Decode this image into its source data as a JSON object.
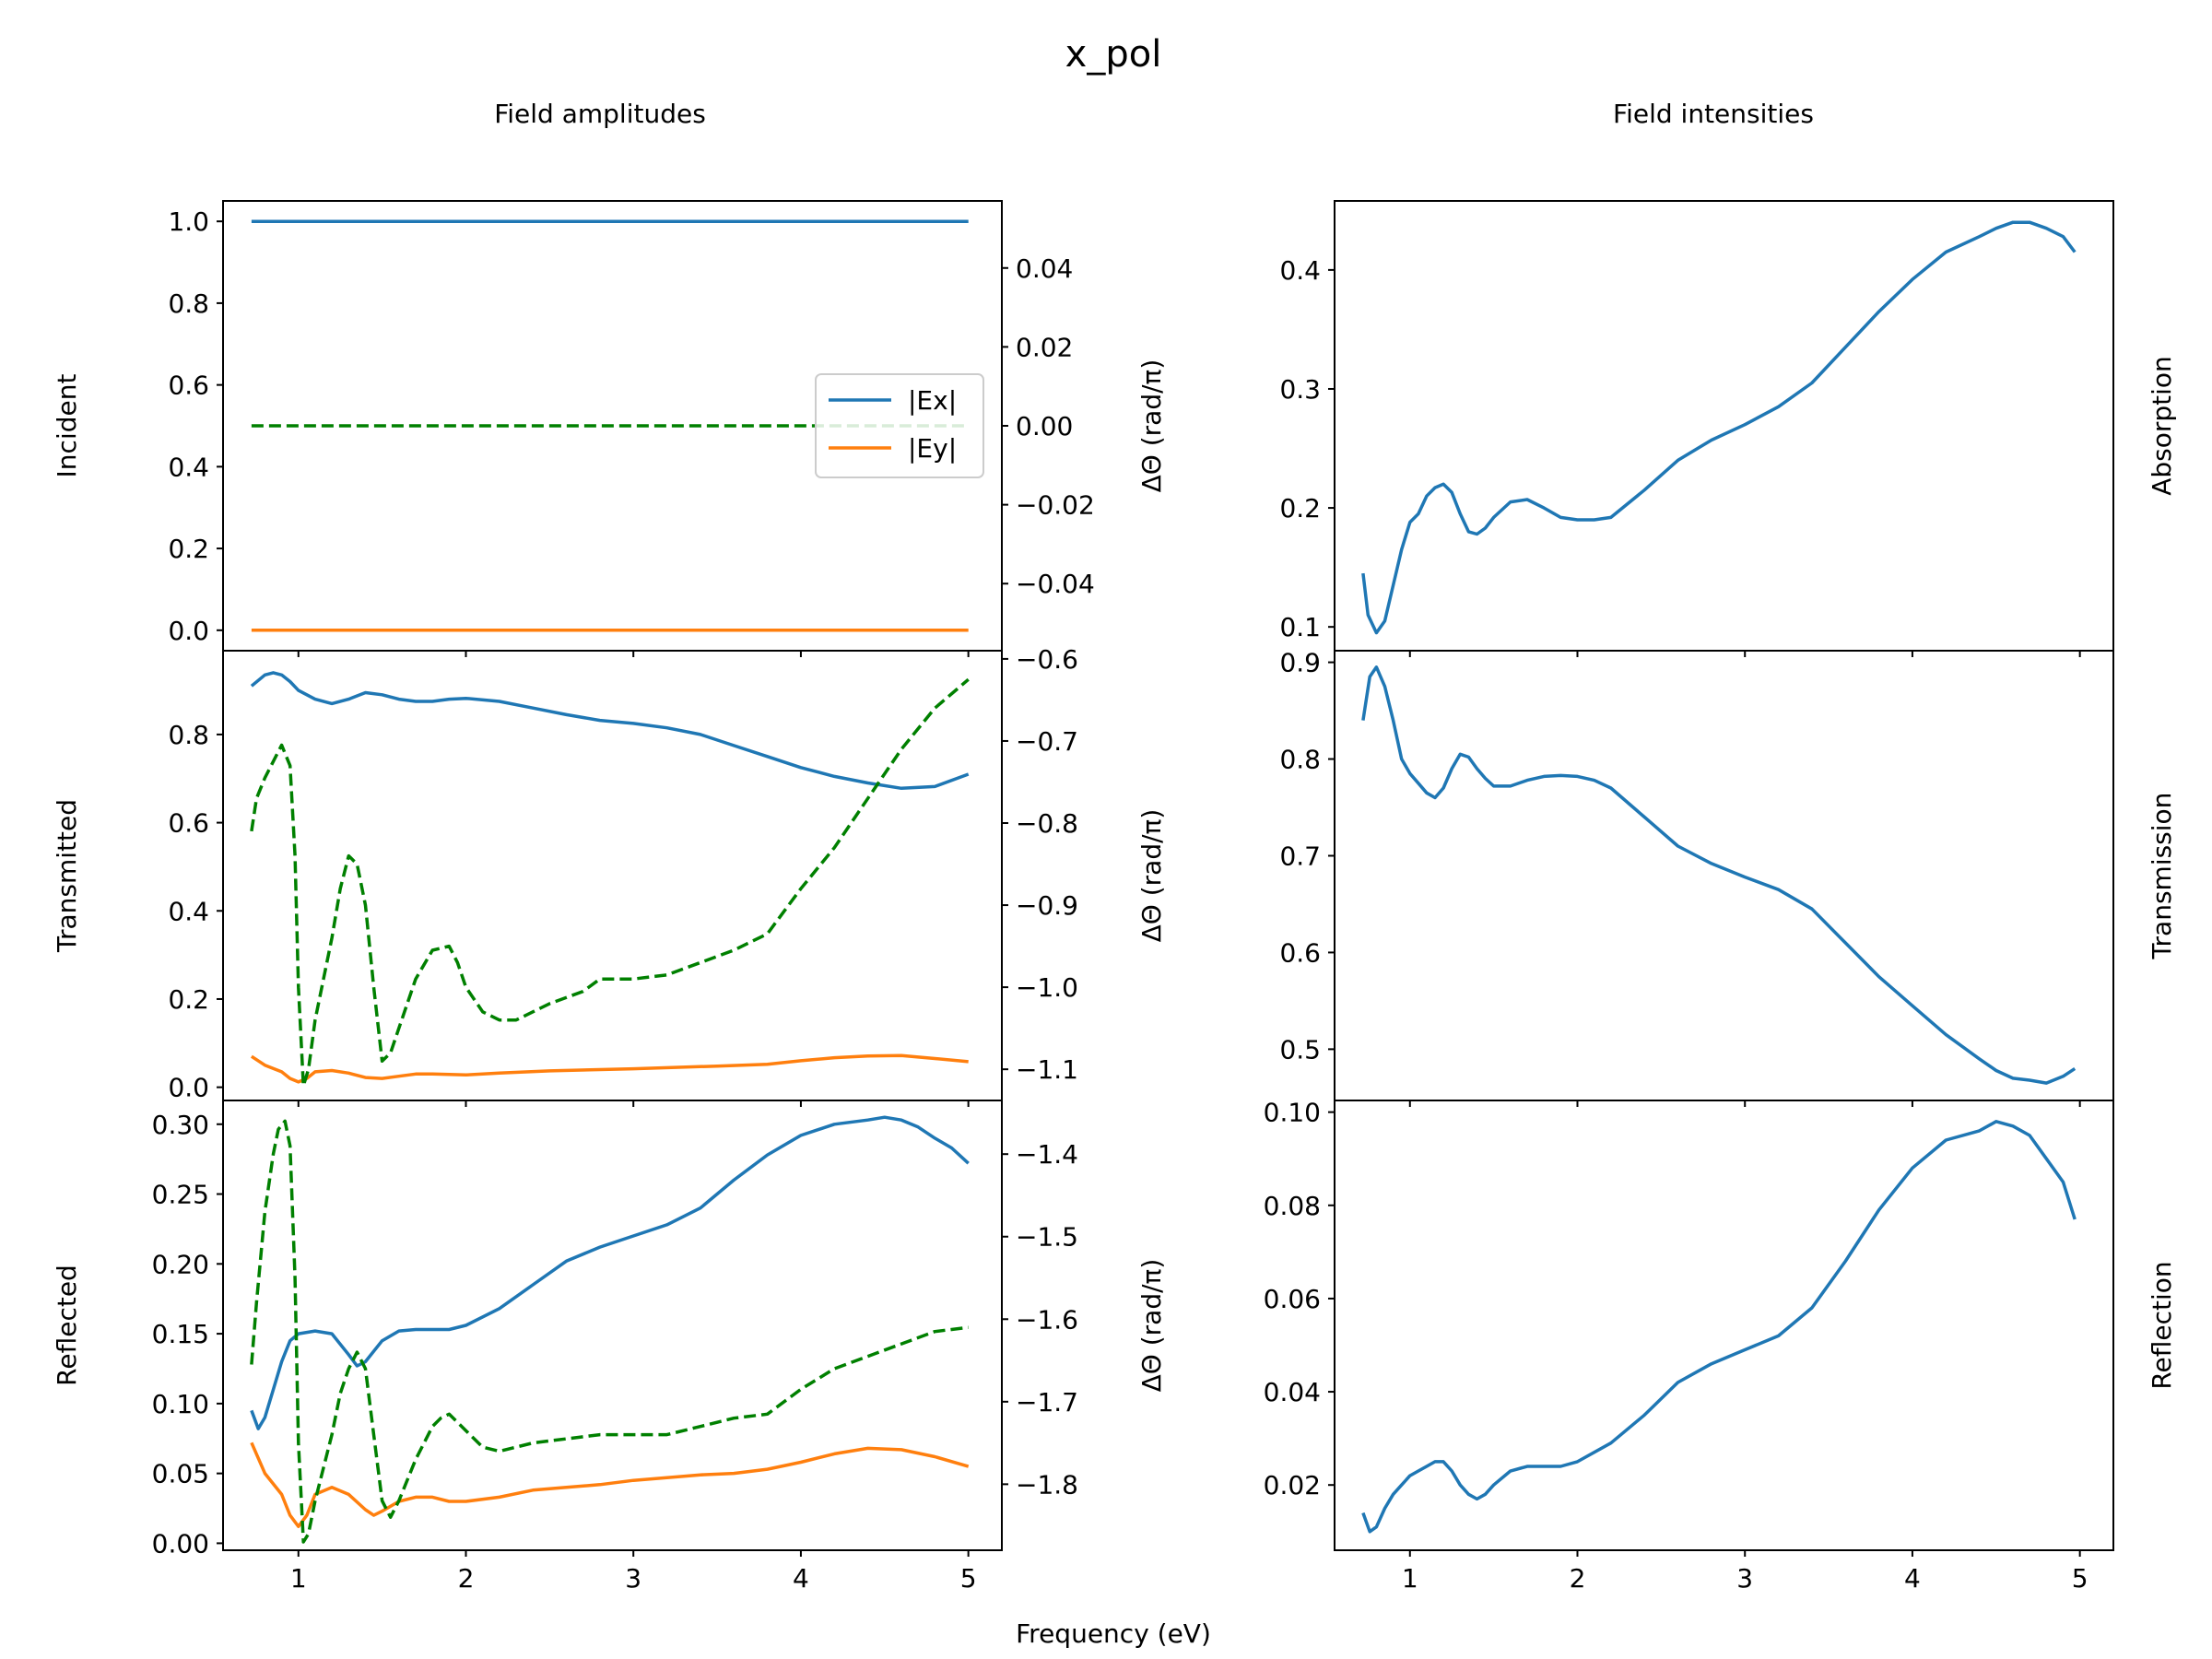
{
  "figure": {
    "title": "x_pol",
    "columns": [
      "Field amplitudes",
      "Field intensities"
    ],
    "xlabel": "Frequency (eV)",
    "twin_ylabel": "ΔΘ (rad/π)"
  },
  "colors": {
    "ex": "#1f77b4",
    "ey": "#ff7f0e",
    "phase": "#008000"
  },
  "legend": {
    "position": "center-right",
    "entries": [
      "|Ex|",
      "|Ey|"
    ]
  },
  "chart_data": [
    {
      "type": "line",
      "panel": "Incident",
      "ylabel": "Incident",
      "xlim": [
        0.55,
        5.2
      ],
      "ylim": [
        -0.05,
        1.05
      ],
      "xticks": [
        1,
        2,
        3,
        4,
        5
      ],
      "yticks": [
        0.0,
        0.2,
        0.4,
        0.6,
        0.8,
        1.0
      ],
      "ytick_labels": [
        "0.0",
        "0.2",
        "0.4",
        "0.6",
        "0.8",
        "1.0"
      ],
      "twin": {
        "ylabel": "ΔΘ (rad/π)",
        "ylim": [
          -0.057,
          0.057
        ],
        "yticks": [
          -0.04,
          -0.02,
          0.0,
          0.02,
          0.04
        ],
        "ytick_labels": [
          "−0.04",
          "−0.02",
          "0.00",
          "0.02",
          "0.04"
        ]
      },
      "series": [
        {
          "name": "|Ex|",
          "axis": "left",
          "style": "solid",
          "color": "#1f77b4",
          "x": [
            0.72,
            5.0
          ],
          "y": [
            1.0,
            1.0
          ]
        },
        {
          "name": "|Ey|",
          "axis": "left",
          "style": "solid",
          "color": "#ff7f0e",
          "x": [
            0.72,
            5.0
          ],
          "y": [
            0.0,
            0.0
          ]
        },
        {
          "axis": "right",
          "style": "dashed",
          "color": "#008000",
          "x": [
            0.72,
            5.0
          ],
          "y": [
            0.0,
            0.0
          ]
        }
      ]
    },
    {
      "type": "line",
      "panel": "Transmitted",
      "ylabel": "Transmitted",
      "xlim": [
        0.55,
        5.2
      ],
      "ylim": [
        -0.03,
        0.99
      ],
      "xticks": [
        1,
        2,
        3,
        4,
        5
      ],
      "yticks": [
        0.0,
        0.2,
        0.4,
        0.6,
        0.8
      ],
      "ytick_labels": [
        "0.0",
        "0.2",
        "0.4",
        "0.6",
        "0.8"
      ],
      "twin": {
        "ylabel": "ΔΘ (rad/π)",
        "ylim": [
          -1.138,
          -0.59
        ],
        "yticks": [
          -1.1,
          -1.0,
          -0.9,
          -0.8,
          -0.7,
          -0.6
        ],
        "ytick_labels": [
          "−1.1",
          "−1.0",
          "−0.9",
          "−0.8",
          "−0.7",
          "−0.6"
        ]
      },
      "series": [
        {
          "name": "|Ex|",
          "axis": "left",
          "style": "solid",
          "color": "#1f77b4",
          "x": [
            0.72,
            0.8,
            0.85,
            0.9,
            0.95,
            1.0,
            1.1,
            1.2,
            1.3,
            1.4,
            1.5,
            1.6,
            1.7,
            1.8,
            1.9,
            2.0,
            2.2,
            2.4,
            2.6,
            2.8,
            3.0,
            3.2,
            3.4,
            3.6,
            3.8,
            4.0,
            4.2,
            4.4,
            4.6,
            4.8,
            5.0
          ],
          "y": [
            0.91,
            0.935,
            0.94,
            0.935,
            0.92,
            0.9,
            0.88,
            0.87,
            0.88,
            0.895,
            0.89,
            0.88,
            0.875,
            0.875,
            0.88,
            0.882,
            0.875,
            0.86,
            0.845,
            0.832,
            0.825,
            0.815,
            0.8,
            0.775,
            0.75,
            0.725,
            0.705,
            0.69,
            0.678,
            0.682,
            0.71
          ]
        },
        {
          "name": "|Ey|",
          "axis": "left",
          "style": "solid",
          "color": "#ff7f0e",
          "x": [
            0.72,
            0.8,
            0.9,
            0.95,
            1.0,
            1.05,
            1.1,
            1.2,
            1.3,
            1.4,
            1.5,
            1.6,
            1.7,
            1.8,
            2.0,
            2.2,
            2.5,
            3.0,
            3.5,
            3.8,
            4.0,
            4.2,
            4.4,
            4.6,
            4.8,
            5.0
          ],
          "y": [
            0.07,
            0.05,
            0.035,
            0.02,
            0.012,
            0.02,
            0.035,
            0.038,
            0.032,
            0.022,
            0.02,
            0.025,
            0.03,
            0.03,
            0.028,
            0.032,
            0.037,
            0.042,
            0.048,
            0.052,
            0.06,
            0.067,
            0.071,
            0.072,
            0.065,
            0.058
          ]
        },
        {
          "axis": "right",
          "style": "dashed",
          "color": "#008000",
          "x": [
            0.72,
            0.75,
            0.8,
            0.85,
            0.9,
            0.95,
            0.98,
            1.0,
            1.03,
            1.06,
            1.1,
            1.15,
            1.2,
            1.25,
            1.3,
            1.35,
            1.4,
            1.45,
            1.5,
            1.55,
            1.6,
            1.7,
            1.8,
            1.9,
            1.95,
            2.0,
            2.1,
            2.2,
            2.3,
            2.5,
            2.7,
            2.8,
            3.0,
            3.2,
            3.4,
            3.6,
            3.8,
            4.0,
            4.2,
            4.4,
            4.6,
            4.8,
            5.0
          ],
          "y": [
            -0.81,
            -0.77,
            -0.745,
            -0.725,
            -0.705,
            -0.73,
            -0.84,
            -1.0,
            -1.12,
            -1.1,
            -1.04,
            -0.99,
            -0.94,
            -0.88,
            -0.84,
            -0.85,
            -0.9,
            -1.0,
            -1.09,
            -1.08,
            -1.05,
            -0.99,
            -0.955,
            -0.95,
            -0.97,
            -1.0,
            -1.03,
            -1.04,
            -1.04,
            -1.02,
            -1.005,
            -0.99,
            -0.99,
            -0.985,
            -0.97,
            -0.955,
            -0.935,
            -0.88,
            -0.83,
            -0.77,
            -0.71,
            -0.66,
            -0.625
          ]
        }
      ]
    },
    {
      "type": "line",
      "panel": "Reflected",
      "ylabel": "Reflected",
      "xlim": [
        0.55,
        5.2
      ],
      "ylim": [
        -0.005,
        0.317
      ],
      "xticks": [
        1,
        2,
        3,
        4,
        5
      ],
      "xtick_labels": [
        "1",
        "2",
        "3",
        "4",
        "5"
      ],
      "yticks": [
        0.0,
        0.05,
        0.1,
        0.15,
        0.2,
        0.25,
        0.3
      ],
      "ytick_labels": [
        "0.00",
        "0.05",
        "0.10",
        "0.15",
        "0.20",
        "0.25",
        "0.30"
      ],
      "twin": {
        "ylabel": "ΔΘ (rad/π)",
        "ylim": [
          -1.88,
          -1.335
        ],
        "yticks": [
          -1.8,
          -1.7,
          -1.6,
          -1.5,
          -1.4
        ],
        "ytick_labels": [
          "−1.8",
          "−1.7",
          "−1.6",
          "−1.5",
          "−1.4"
        ]
      },
      "series": [
        {
          "name": "|Ex|",
          "axis": "left",
          "style": "solid",
          "color": "#1f77b4",
          "x": [
            0.72,
            0.76,
            0.8,
            0.85,
            0.9,
            0.95,
            1.0,
            1.1,
            1.2,
            1.3,
            1.35,
            1.4,
            1.5,
            1.6,
            1.7,
            1.8,
            1.9,
            2.0,
            2.2,
            2.4,
            2.6,
            2.8,
            3.0,
            3.2,
            3.4,
            3.6,
            3.8,
            4.0,
            4.2,
            4.4,
            4.5,
            4.6,
            4.7,
            4.8,
            4.9,
            5.0
          ],
          "y": [
            0.095,
            0.082,
            0.09,
            0.11,
            0.13,
            0.145,
            0.15,
            0.152,
            0.15,
            0.135,
            0.127,
            0.13,
            0.145,
            0.152,
            0.153,
            0.153,
            0.153,
            0.156,
            0.168,
            0.185,
            0.202,
            0.212,
            0.22,
            0.228,
            0.24,
            0.26,
            0.278,
            0.292,
            0.3,
            0.303,
            0.305,
            0.303,
            0.298,
            0.29,
            0.283,
            0.272
          ]
        },
        {
          "name": "|Ey|",
          "axis": "left",
          "style": "solid",
          "color": "#ff7f0e",
          "x": [
            0.72,
            0.8,
            0.9,
            0.95,
            1.0,
            1.05,
            1.1,
            1.2,
            1.3,
            1.4,
            1.45,
            1.5,
            1.6,
            1.7,
            1.8,
            1.9,
            2.0,
            2.2,
            2.4,
            2.6,
            2.8,
            3.0,
            3.2,
            3.4,
            3.6,
            3.8,
            4.0,
            4.2,
            4.4,
            4.6,
            4.8,
            5.0
          ],
          "y": [
            0.072,
            0.05,
            0.035,
            0.02,
            0.012,
            0.02,
            0.035,
            0.04,
            0.035,
            0.024,
            0.02,
            0.023,
            0.03,
            0.033,
            0.033,
            0.03,
            0.03,
            0.033,
            0.038,
            0.04,
            0.042,
            0.045,
            0.047,
            0.049,
            0.05,
            0.053,
            0.058,
            0.064,
            0.068,
            0.067,
            0.062,
            0.055
          ]
        },
        {
          "axis": "right",
          "style": "dashed",
          "color": "#008000",
          "x": [
            0.72,
            0.75,
            0.8,
            0.85,
            0.88,
            0.92,
            0.95,
            0.98,
            1.0,
            1.03,
            1.06,
            1.1,
            1.15,
            1.2,
            1.25,
            1.3,
            1.35,
            1.4,
            1.45,
            1.5,
            1.55,
            1.6,
            1.7,
            1.8,
            1.85,
            1.9,
            2.0,
            2.1,
            2.2,
            2.4,
            2.6,
            2.8,
            3.0,
            3.2,
            3.4,
            3.6,
            3.8,
            4.0,
            4.2,
            4.4,
            4.6,
            4.8,
            5.0
          ],
          "y": [
            -1.655,
            -1.58,
            -1.47,
            -1.4,
            -1.37,
            -1.36,
            -1.39,
            -1.55,
            -1.75,
            -1.87,
            -1.86,
            -1.82,
            -1.78,
            -1.74,
            -1.69,
            -1.66,
            -1.64,
            -1.66,
            -1.74,
            -1.82,
            -1.84,
            -1.82,
            -1.77,
            -1.73,
            -1.72,
            -1.715,
            -1.735,
            -1.755,
            -1.76,
            -1.75,
            -1.745,
            -1.74,
            -1.74,
            -1.74,
            -1.73,
            -1.72,
            -1.715,
            -1.685,
            -1.66,
            -1.645,
            -1.63,
            -1.615,
            -1.61
          ]
        }
      ]
    },
    {
      "type": "line",
      "panel": "Absorption",
      "ylabel": "Absorption",
      "xlim": [
        0.55,
        5.2
      ],
      "ylim": [
        0.08,
        0.458
      ],
      "xticks": [
        1,
        2,
        3,
        4,
        5
      ],
      "yticks": [
        0.1,
        0.2,
        0.3,
        0.4
      ],
      "ytick_labels": [
        "0.1",
        "0.2",
        "0.3",
        "0.4"
      ],
      "series": [
        {
          "axis": "left",
          "style": "solid",
          "color": "#1f77b4",
          "x": [
            0.72,
            0.75,
            0.8,
            0.85,
            0.9,
            0.95,
            1.0,
            1.05,
            1.1,
            1.15,
            1.2,
            1.25,
            1.3,
            1.35,
            1.4,
            1.45,
            1.5,
            1.6,
            1.7,
            1.8,
            1.9,
            2.0,
            2.1,
            2.2,
            2.4,
            2.6,
            2.8,
            3.0,
            3.2,
            3.4,
            3.6,
            3.8,
            4.0,
            4.2,
            4.4,
            4.5,
            4.6,
            4.7,
            4.8,
            4.9,
            4.97
          ],
          "y": [
            0.145,
            0.11,
            0.095,
            0.105,
            0.135,
            0.165,
            0.188,
            0.195,
            0.21,
            0.217,
            0.22,
            0.213,
            0.195,
            0.18,
            0.178,
            0.183,
            0.192,
            0.205,
            0.207,
            0.2,
            0.192,
            0.19,
            0.19,
            0.192,
            0.215,
            0.24,
            0.257,
            0.27,
            0.285,
            0.305,
            0.335,
            0.365,
            0.392,
            0.415,
            0.428,
            0.435,
            0.44,
            0.44,
            0.435,
            0.428,
            0.415
          ]
        }
      ]
    },
    {
      "type": "line",
      "panel": "Transmission",
      "ylabel": "Transmission",
      "xlim": [
        0.55,
        5.2
      ],
      "ylim": [
        0.447,
        0.912
      ],
      "xticks": [
        1,
        2,
        3,
        4,
        5
      ],
      "yticks": [
        0.5,
        0.6,
        0.7,
        0.8,
        0.9
      ],
      "ytick_labels": [
        "0.5",
        "0.6",
        "0.7",
        "0.8",
        "0.9"
      ],
      "series": [
        {
          "axis": "left",
          "style": "solid",
          "color": "#1f77b4",
          "x": [
            0.72,
            0.76,
            0.8,
            0.85,
            0.9,
            0.95,
            1.0,
            1.05,
            1.1,
            1.15,
            1.2,
            1.25,
            1.3,
            1.35,
            1.4,
            1.45,
            1.5,
            1.6,
            1.7,
            1.8,
            1.9,
            2.0,
            2.1,
            2.2,
            2.4,
            2.6,
            2.8,
            3.0,
            3.2,
            3.4,
            3.6,
            3.8,
            4.0,
            4.2,
            4.4,
            4.5,
            4.6,
            4.7,
            4.8,
            4.9,
            4.97
          ],
          "y": [
            0.84,
            0.885,
            0.895,
            0.875,
            0.84,
            0.8,
            0.785,
            0.775,
            0.765,
            0.76,
            0.77,
            0.79,
            0.805,
            0.802,
            0.79,
            0.78,
            0.772,
            0.772,
            0.778,
            0.782,
            0.783,
            0.782,
            0.778,
            0.77,
            0.74,
            0.71,
            0.692,
            0.678,
            0.665,
            0.645,
            0.61,
            0.575,
            0.545,
            0.515,
            0.49,
            0.478,
            0.47,
            0.468,
            0.465,
            0.472,
            0.48
          ]
        }
      ]
    },
    {
      "type": "line",
      "panel": "Reflection",
      "ylabel": "Reflection",
      "xlim": [
        0.55,
        5.2
      ],
      "ylim": [
        0.006,
        0.1025
      ],
      "xticks": [
        1,
        2,
        3,
        4,
        5
      ],
      "xtick_labels": [
        "1",
        "2",
        "3",
        "4",
        "5"
      ],
      "yticks": [
        0.02,
        0.04,
        0.06,
        0.08,
        0.1
      ],
      "ytick_labels": [
        "0.02",
        "0.04",
        "0.06",
        "0.08",
        "0.10"
      ],
      "series": [
        {
          "axis": "left",
          "style": "solid",
          "color": "#1f77b4",
          "x": [
            0.72,
            0.76,
            0.8,
            0.85,
            0.9,
            0.95,
            1.0,
            1.05,
            1.1,
            1.15,
            1.2,
            1.25,
            1.3,
            1.35,
            1.4,
            1.45,
            1.5,
            1.6,
            1.7,
            1.8,
            1.9,
            2.0,
            2.2,
            2.4,
            2.6,
            2.8,
            3.0,
            3.2,
            3.4,
            3.6,
            3.8,
            4.0,
            4.2,
            4.4,
            4.5,
            4.6,
            4.7,
            4.8,
            4.9,
            4.97
          ],
          "y": [
            0.014,
            0.01,
            0.011,
            0.015,
            0.018,
            0.02,
            0.022,
            0.023,
            0.024,
            0.025,
            0.025,
            0.023,
            0.02,
            0.018,
            0.017,
            0.018,
            0.02,
            0.023,
            0.024,
            0.024,
            0.024,
            0.025,
            0.029,
            0.035,
            0.042,
            0.046,
            0.049,
            0.052,
            0.058,
            0.068,
            0.079,
            0.088,
            0.094,
            0.096,
            0.098,
            0.097,
            0.095,
            0.09,
            0.085,
            0.077
          ]
        }
      ]
    }
  ]
}
